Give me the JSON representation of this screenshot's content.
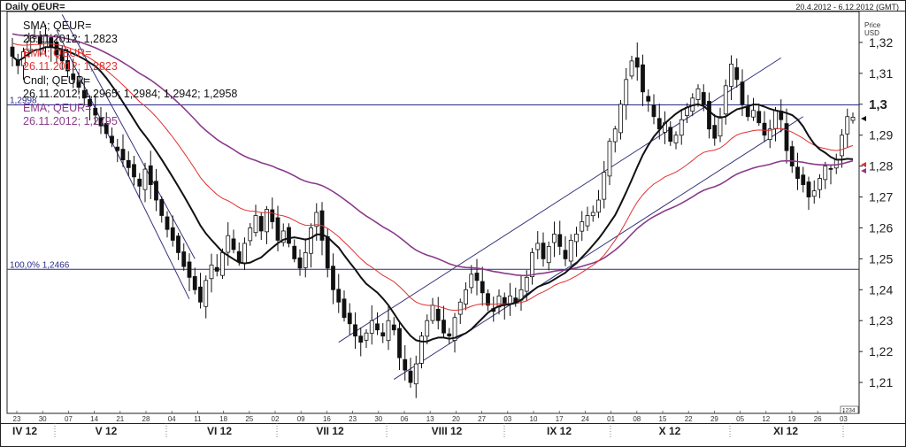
{
  "header": {
    "title": "Daily QEUR=",
    "date_range": "20.4.2012 - 6.12.2012 (GMT)"
  },
  "legend": [
    {
      "label": "SMA; QEUR=",
      "value": "26.11.2012; 1,2823",
      "color": "#111111"
    },
    {
      "label": "EMA; QEUR=",
      "value": "26.11.2012; 1,2823",
      "color": "#e03030"
    },
    {
      "label": "Cndl; QEUR=",
      "value": "26.11.2012; 1,2965; 1,2984; 1,2942; 1,2958",
      "color": "#111111"
    },
    {
      "label": "EMA; QEUR=",
      "value": "26.11.2012; 1,2795",
      "color": "#8a3a8a"
    }
  ],
  "chart_data": {
    "type": "candlestick",
    "ylabel": "Price USD",
    "ylim": [
      1.2,
      1.33
    ],
    "y_ticks": [
      "1,21",
      "1,22",
      "1,23",
      "1,24",
      "1,25",
      "1,26",
      "1,27",
      "1,28",
      "1,29",
      "1,3",
      "1,31",
      "1,32"
    ],
    "y_tick_values": [
      1.21,
      1.22,
      1.23,
      1.24,
      1.25,
      1.26,
      1.27,
      1.28,
      1.29,
      1.3,
      1.31,
      1.32
    ],
    "x_day_ticks": [
      "23",
      "30",
      "07",
      "14",
      "21",
      "28",
      "04",
      "11",
      "18",
      "25",
      "02",
      "09",
      "16",
      "23",
      "30",
      "06",
      "13",
      "20",
      "27",
      "03",
      "10",
      "17",
      "24",
      "01",
      "08",
      "15",
      "22",
      "29",
      "05",
      "12",
      "19",
      "26",
      "03"
    ],
    "months": [
      "IV 12",
      "V 12",
      "VI 12",
      "VII 12",
      "VIII 12",
      "IX 12",
      "X 12",
      "XI 12"
    ],
    "horizontal_lines": [
      {
        "label": "1,2998",
        "value": 1.2998
      },
      {
        "label": "100,0% 1,2466",
        "value": 1.2466
      }
    ],
    "last_price_badge": "1234",
    "closes": [
      1.3155,
      1.3125,
      1.317,
      1.3205,
      1.3218,
      1.3195,
      1.3225,
      1.3185,
      1.316,
      1.314,
      1.3108,
      1.308,
      1.3055,
      1.302,
      1.2995,
      1.2965,
      1.293,
      1.2905,
      1.2875,
      1.285,
      1.282,
      1.2795,
      1.2765,
      1.2735,
      1.279,
      1.274,
      1.269,
      1.264,
      1.2595,
      1.256,
      1.252,
      1.2475,
      1.244,
      1.24,
      1.236,
      1.243,
      1.248,
      1.246,
      1.252,
      1.2575,
      1.253,
      1.249,
      1.255,
      1.26,
      1.264,
      1.259,
      1.266,
      1.262,
      1.256,
      1.259,
      1.255,
      1.25,
      1.247,
      1.252,
      1.26,
      1.265,
      1.256,
      1.247,
      1.24,
      1.236,
      1.231,
      1.229,
      1.225,
      1.223,
      1.226,
      1.23,
      1.227,
      1.225,
      1.23,
      1.227,
      1.218,
      1.214,
      1.21,
      1.216,
      1.225,
      1.23,
      1.235,
      1.23,
      1.226,
      1.225,
      1.231,
      1.236,
      1.24,
      1.245,
      1.243,
      1.239,
      1.235,
      1.233,
      1.238,
      1.235,
      1.238,
      1.236,
      1.24,
      1.244,
      1.252,
      1.255,
      1.25,
      1.254,
      1.258,
      1.254,
      1.25,
      1.256,
      1.258,
      1.262,
      1.264,
      1.265,
      1.269,
      1.278,
      1.288,
      1.292,
      1.3,
      1.308,
      1.314,
      1.312,
      1.304,
      1.301,
      1.296,
      1.292,
      1.294,
      1.288,
      1.29,
      1.295,
      1.299,
      1.302,
      1.305,
      1.3,
      1.292,
      1.289,
      1.296,
      1.306,
      1.313,
      1.308,
      1.3,
      1.296,
      1.298,
      1.294,
      1.29,
      1.292,
      1.298,
      1.295,
      1.285,
      1.28,
      1.276,
      1.274,
      1.27,
      1.272,
      1.276,
      1.28,
      1.279,
      1.282,
      1.29,
      1.296,
      1.2958
    ]
  }
}
